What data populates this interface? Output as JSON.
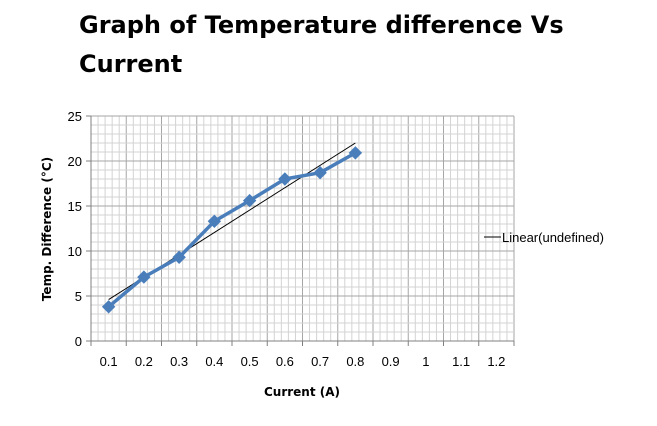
{
  "chart_data": {
    "type": "line",
    "title": "Graph of Temperature difference Vs Current",
    "xlabel": "Current (A)",
    "ylabel": "Temp. Difference (°C)",
    "xlim": [
      0,
      1.2
    ],
    "ylim": [
      0,
      25
    ],
    "x_ticks": [
      "0.1",
      "0.2",
      "0.3",
      "0.4",
      "0.5",
      "0.6",
      "0.7",
      "0.8",
      "0.9",
      "1",
      "1.1",
      "1.2"
    ],
    "y_ticks": [
      "0",
      "5",
      "10",
      "15",
      "20",
      "25"
    ],
    "grid": true,
    "series": [
      {
        "name": "Temp. Difference",
        "color": "#4a7ebb",
        "marker": "diamond",
        "x": [
          0.05,
          0.15,
          0.25,
          0.35,
          0.45,
          0.55,
          0.65,
          0.75
        ],
        "y": [
          3.8,
          7.1,
          9.3,
          13.3,
          15.6,
          18.0,
          18.7,
          20.9
        ]
      }
    ],
    "trendline": {
      "type": "linear",
      "color": "#000000",
      "x": [
        0.05,
        0.75
      ],
      "y": [
        4.6,
        22.0
      ]
    },
    "legend": {
      "position": "right",
      "entries": [
        "Linear(undefined)"
      ]
    }
  }
}
